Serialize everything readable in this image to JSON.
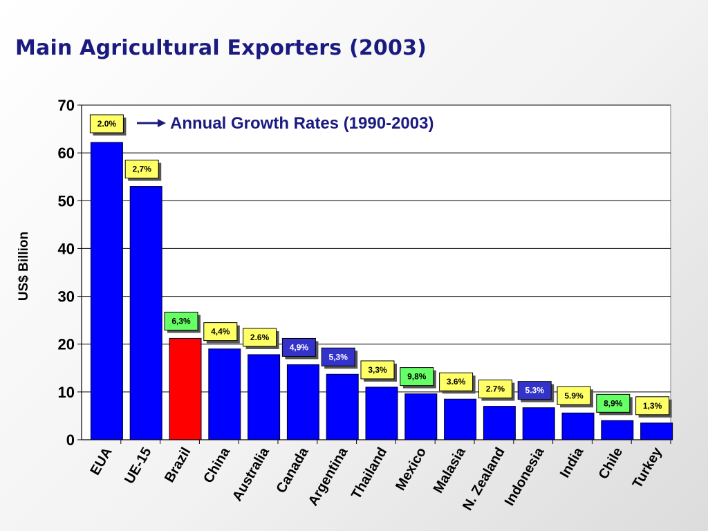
{
  "slide": {
    "title": "Main Agricultural Exporters (2003)"
  },
  "chart_data": {
    "type": "bar",
    "ylabel": "US$ Billion",
    "xlabel": "",
    "ylim": [
      0,
      70
    ],
    "yticks": [
      0,
      10,
      20,
      30,
      40,
      50,
      60,
      70
    ],
    "grid": true,
    "annotation": "Annual Growth Rates (1990-2003)",
    "categories": [
      "EUA",
      "UE-15",
      "Brazil",
      "China",
      "Australia",
      "Canada",
      "Argentina",
      "Thailand",
      "Mexico",
      "Malasia",
      "N. Zealand",
      "Indonesia",
      "India",
      "Chile",
      "Turkey"
    ],
    "values": [
      62.2,
      53,
      21.2,
      19,
      17.8,
      15.7,
      13.7,
      11,
      9.6,
      8.5,
      7,
      6.7,
      5.6,
      4,
      3.5
    ],
    "bar_colors": [
      "#0000ff",
      "#0000ff",
      "#ff0000",
      "#0000ff",
      "#0000ff",
      "#0000ff",
      "#0000ff",
      "#0000ff",
      "#0000ff",
      "#0000ff",
      "#0000ff",
      "#0000ff",
      "#0000ff",
      "#0000ff",
      "#0000ff"
    ],
    "growth_rates": [
      "2.0%",
      "2,7%",
      "6,3%",
      "4,4%",
      "2.6%",
      "4,9%",
      "5,3%",
      "3,3%",
      "9,8%",
      "3.6%",
      "2.7%",
      "5.3%",
      "5.9%",
      "8,9%",
      "1,3%"
    ],
    "badge_colors": [
      "#ffff66",
      "#ffff66",
      "#66ff66",
      "#ffff66",
      "#ffff66",
      "#3333cc",
      "#3333cc",
      "#ffff66",
      "#66ff66",
      "#ffff66",
      "#ffff66",
      "#3333cc",
      "#ffff66",
      "#66ff66",
      "#ffff66"
    ],
    "badge_text_colors": [
      "#000000",
      "#000000",
      "#000000",
      "#000000",
      "#000000",
      "#ffffff",
      "#ffffff",
      "#000000",
      "#000000",
      "#000000",
      "#000000",
      "#ffffff",
      "#000000",
      "#000000",
      "#000000"
    ]
  }
}
